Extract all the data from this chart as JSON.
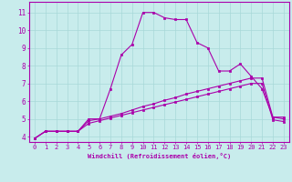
{
  "xlabel": "Windchill (Refroidissement éolien,°C)",
  "background_color": "#c8ecec",
  "grid_color": "#a8d8d8",
  "line_color": "#aa00aa",
  "xlim": [
    -0.5,
    23.5
  ],
  "ylim": [
    3.7,
    11.6
  ],
  "xticks": [
    0,
    1,
    2,
    3,
    4,
    5,
    6,
    7,
    8,
    9,
    10,
    11,
    12,
    13,
    14,
    15,
    16,
    17,
    18,
    19,
    20,
    21,
    22,
    23
  ],
  "yticks": [
    4,
    5,
    6,
    7,
    8,
    9,
    10,
    11
  ],
  "series": [
    [
      3.9,
      4.3,
      4.3,
      4.3,
      4.3,
      5.0,
      5.0,
      6.7,
      8.6,
      9.2,
      11.0,
      11.0,
      10.7,
      10.6,
      10.6,
      9.3,
      9.0,
      7.7,
      7.7,
      8.1,
      7.4,
      6.7,
      5.1,
      5.1
    ],
    [
      3.9,
      4.3,
      4.3,
      4.3,
      4.3,
      4.9,
      5.0,
      5.15,
      5.3,
      5.5,
      5.7,
      5.85,
      6.05,
      6.2,
      6.4,
      6.55,
      6.7,
      6.85,
      7.0,
      7.15,
      7.3,
      7.3,
      5.1,
      5.0
    ],
    [
      3.9,
      4.3,
      4.3,
      4.3,
      4.3,
      4.75,
      4.9,
      5.05,
      5.2,
      5.35,
      5.5,
      5.65,
      5.8,
      5.95,
      6.1,
      6.25,
      6.4,
      6.55,
      6.7,
      6.85,
      7.0,
      7.0,
      4.95,
      4.85
    ]
  ],
  "tick_fontsize": 5,
  "xlabel_fontsize": 5,
  "tick_color": "#aa00aa",
  "spine_color": "#aa00aa"
}
